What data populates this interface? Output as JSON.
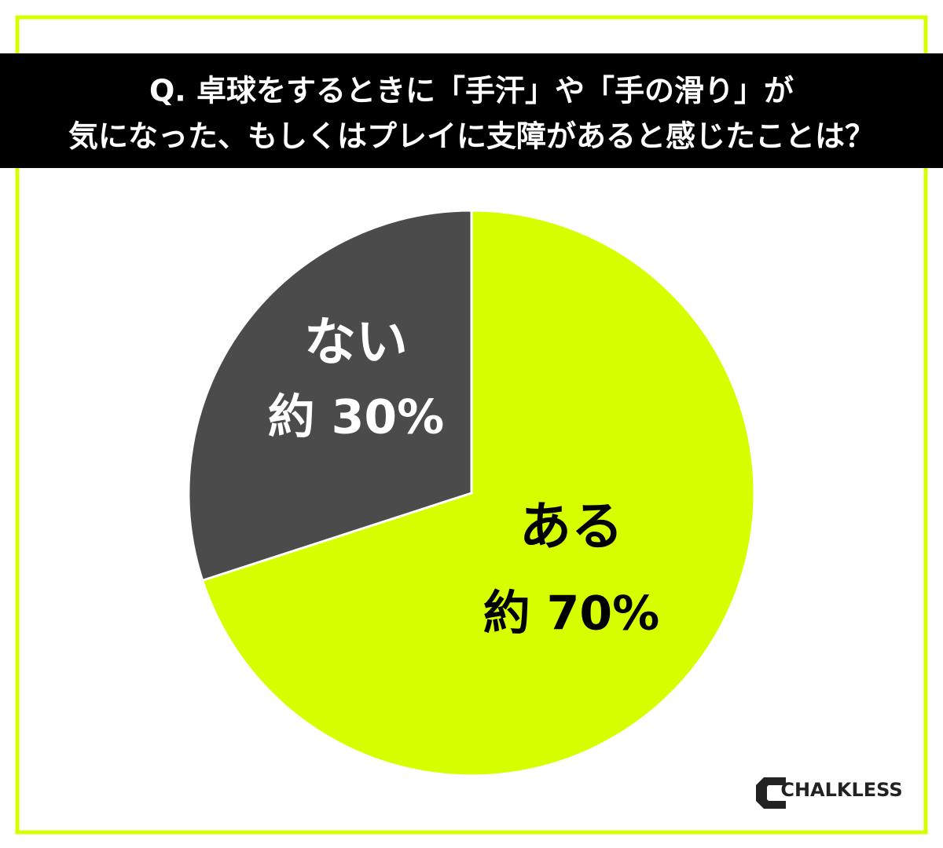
{
  "chart_data": {
    "type": "pie",
    "title": [
      "Q. 卓球をするときに「手汗」や「手の滑り」が",
      "気になった、もしくはプレイに支障があると感じたことは？"
    ],
    "categories": [
      "ある",
      "ない"
    ],
    "values": [
      70,
      30
    ],
    "value_labels": [
      "約 70%",
      "約 30%"
    ],
    "colors": [
      "#d7ff00",
      "#4b4b4b"
    ],
    "brand": "CHALKLESS"
  }
}
